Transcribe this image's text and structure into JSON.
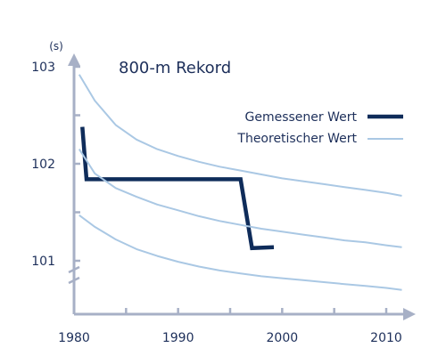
{
  "colors": {
    "axis": "#a7b0c6",
    "measured": "#0f2c5a",
    "theoretical": "#aac8e4",
    "text": "#1d2f5a"
  },
  "chart_data": {
    "type": "line",
    "title": "800-m Rekord",
    "ylabel": "(s)",
    "xlabel": "",
    "xlim": [
      1980,
      2012
    ],
    "ylim": [
      100.6,
      103.1
    ],
    "x_ticks": [
      1980,
      1990,
      2000,
      2010
    ],
    "x_tick_labels": [
      "1980",
      "1990",
      "2000",
      "2010"
    ],
    "y_ticks": [
      101,
      102,
      103
    ],
    "y_tick_labels": [
      "101",
      "102",
      "103"
    ],
    "y_axis_break": true,
    "legend_position": "upper-right",
    "series": [
      {
        "name": "Gemessener Wert",
        "style": "thick",
        "color_key": "measured",
        "x": [
          1980.8,
          1981.2,
          1996.0,
          1997.1,
          1999.2
        ],
        "y": [
          102.38,
          101.84,
          101.84,
          101.13,
          101.14
        ]
      },
      {
        "name": "Theoretischer Wert",
        "style": "thin",
        "color_key": "theoretical",
        "x": [
          1980.5,
          1982,
          1984,
          1986,
          1988,
          1990,
          1992,
          1994,
          1996,
          1998,
          2000,
          2002,
          2004,
          2006,
          2008,
          2010,
          2011.5
        ],
        "y": [
          102.92,
          102.65,
          102.4,
          102.25,
          102.15,
          102.08,
          102.02,
          101.97,
          101.93,
          101.89,
          101.85,
          101.82,
          101.79,
          101.76,
          101.73,
          101.7,
          101.67
        ]
      },
      {
        "name": "",
        "style": "thin",
        "color_key": "theoretical",
        "x": [
          1980.5,
          1982,
          1984,
          1986,
          1988,
          1990,
          1992,
          1994,
          1996,
          1998,
          2000,
          2002,
          2004,
          2006,
          2008,
          2010,
          2011.5
        ],
        "y": [
          102.15,
          101.9,
          101.75,
          101.66,
          101.58,
          101.52,
          101.46,
          101.41,
          101.37,
          101.33,
          101.3,
          101.27,
          101.24,
          101.21,
          101.19,
          101.16,
          101.14
        ]
      },
      {
        "name": "",
        "style": "thin",
        "color_key": "theoretical",
        "x": [
          1980.5,
          1982,
          1984,
          1986,
          1988,
          1990,
          1992,
          1994,
          1996,
          1998,
          2000,
          2002,
          2004,
          2006,
          2008,
          2010,
          2011.5
        ],
        "y": [
          101.47,
          101.35,
          101.22,
          101.12,
          101.05,
          100.99,
          100.94,
          100.9,
          100.87,
          100.84,
          100.82,
          100.8,
          100.78,
          100.76,
          100.74,
          100.72,
          100.7
        ]
      }
    ]
  }
}
